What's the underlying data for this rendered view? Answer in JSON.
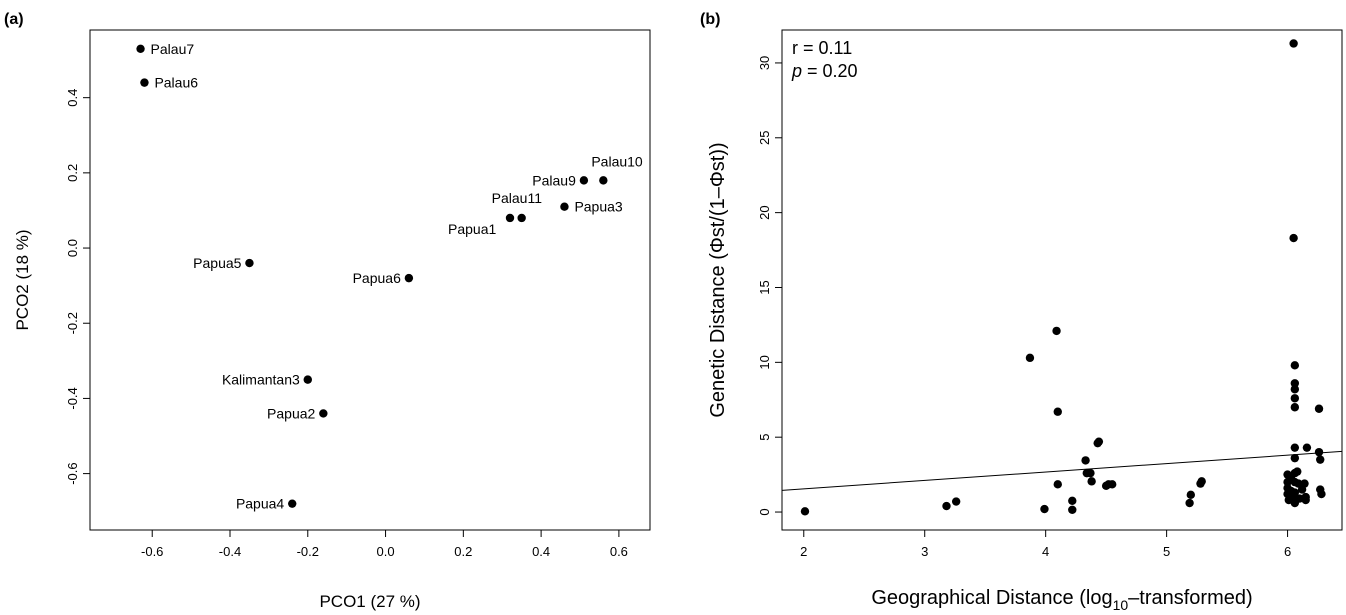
{
  "chart_data": [
    {
      "type": "scatter",
      "panel_label": "(a)",
      "xlabel": "PCO1 (27 %)",
      "ylabel": "PCO2 (18 %)",
      "xlim": [
        -0.76,
        0.68
      ],
      "ylim": [
        -0.75,
        0.58
      ],
      "xticks": [
        "-0.6",
        "-0.4",
        "-0.2",
        "0.0",
        "0.2",
        "0.4",
        "0.6"
      ],
      "yticks": [
        "-0.6",
        "-0.4",
        "-0.2",
        "0.0",
        "0.2",
        "0.4"
      ],
      "grid": false,
      "points": [
        {
          "name": "Palau7",
          "x": -0.63,
          "y": 0.53
        },
        {
          "name": "Palau6",
          "x": -0.62,
          "y": 0.44
        },
        {
          "name": "Palau10",
          "x": 0.56,
          "y": 0.18
        },
        {
          "name": "Palau9",
          "x": 0.51,
          "y": 0.18
        },
        {
          "name": "Palau11",
          "x": 0.35,
          "y": 0.08
        },
        {
          "name": "Papua3",
          "x": 0.46,
          "y": 0.11
        },
        {
          "name": "Papua1",
          "x": 0.32,
          "y": 0.08
        },
        {
          "name": "Papua5",
          "x": -0.35,
          "y": -0.04
        },
        {
          "name": "Papua6",
          "x": 0.06,
          "y": -0.08
        },
        {
          "name": "Kalimantan3",
          "x": -0.2,
          "y": -0.35
        },
        {
          "name": "Papua2",
          "x": -0.16,
          "y": -0.44
        },
        {
          "name": "Papua4",
          "x": -0.24,
          "y": -0.68
        }
      ]
    },
    {
      "type": "scatter",
      "panel_label": "(b)",
      "xlabel": "Geographical Distance (log10–transformed)",
      "xlabel_parts": {
        "pre": "Geographical Distance (log",
        "sub": "10",
        "post": "–transformed)"
      },
      "ylabel": "Genetic Distance (Φst/(1–Φst))",
      "xlim": [
        1.82,
        6.45
      ],
      "ylim": [
        -1.2,
        32.2
      ],
      "xticks": [
        "2",
        "3",
        "4",
        "5",
        "6"
      ],
      "yticks": [
        "0",
        "5",
        "10",
        "15",
        "20",
        "25",
        "30"
      ],
      "grid": false,
      "annotations": {
        "r": "r = 0.11",
        "p_italic": "p",
        "p_rest": " = 0.20"
      },
      "regression": {
        "x0": 1.82,
        "y0": 1.45,
        "x1": 6.45,
        "y1": 4.05
      },
      "points": [
        [
          2.01,
          0.05
        ],
        [
          3.18,
          0.4
        ],
        [
          3.26,
          0.7
        ],
        [
          3.87,
          10.3
        ],
        [
          3.99,
          0.2
        ],
        [
          4.09,
          12.1
        ],
        [
          4.1,
          6.7
        ],
        [
          4.1,
          1.85
        ],
        [
          4.22,
          0.75
        ],
        [
          4.22,
          0.15
        ],
        [
          4.33,
          3.45
        ],
        [
          4.34,
          2.6
        ],
        [
          4.37,
          2.6
        ],
        [
          4.38,
          2.05
        ],
        [
          4.43,
          4.6
        ],
        [
          4.44,
          4.7
        ],
        [
          4.5,
          1.75
        ],
        [
          4.52,
          1.85
        ],
        [
          4.55,
          1.85
        ],
        [
          5.19,
          0.6
        ],
        [
          5.2,
          1.15
        ],
        [
          5.28,
          1.9
        ],
        [
          5.29,
          2.05
        ],
        [
          6.0,
          2.5
        ],
        [
          6.0,
          2.0
        ],
        [
          6.0,
          1.6
        ],
        [
          6.0,
          1.2
        ],
        [
          6.01,
          0.8
        ],
        [
          6.03,
          2.2
        ],
        [
          6.03,
          1.4
        ],
        [
          6.04,
          1.0
        ],
        [
          6.05,
          31.3
        ],
        [
          6.05,
          18.3
        ],
        [
          6.06,
          9.8
        ],
        [
          6.06,
          8.6
        ],
        [
          6.06,
          8.2
        ],
        [
          6.06,
          7.6
        ],
        [
          6.06,
          7.0
        ],
        [
          6.06,
          4.3
        ],
        [
          6.06,
          3.6
        ],
        [
          6.06,
          2.6
        ],
        [
          6.06,
          2.0
        ],
        [
          6.06,
          1.3
        ],
        [
          6.06,
          0.6
        ],
        [
          6.08,
          2.7
        ],
        [
          6.09,
          1.9
        ],
        [
          6.1,
          0.9
        ],
        [
          6.12,
          1.5
        ],
        [
          6.14,
          1.9
        ],
        [
          6.15,
          1.0
        ],
        [
          6.15,
          0.8
        ],
        [
          6.16,
          4.3
        ],
        [
          6.26,
          6.9
        ],
        [
          6.26,
          4.0
        ],
        [
          6.27,
          3.5
        ],
        [
          6.27,
          1.5
        ],
        [
          6.28,
          1.2
        ]
      ]
    }
  ]
}
